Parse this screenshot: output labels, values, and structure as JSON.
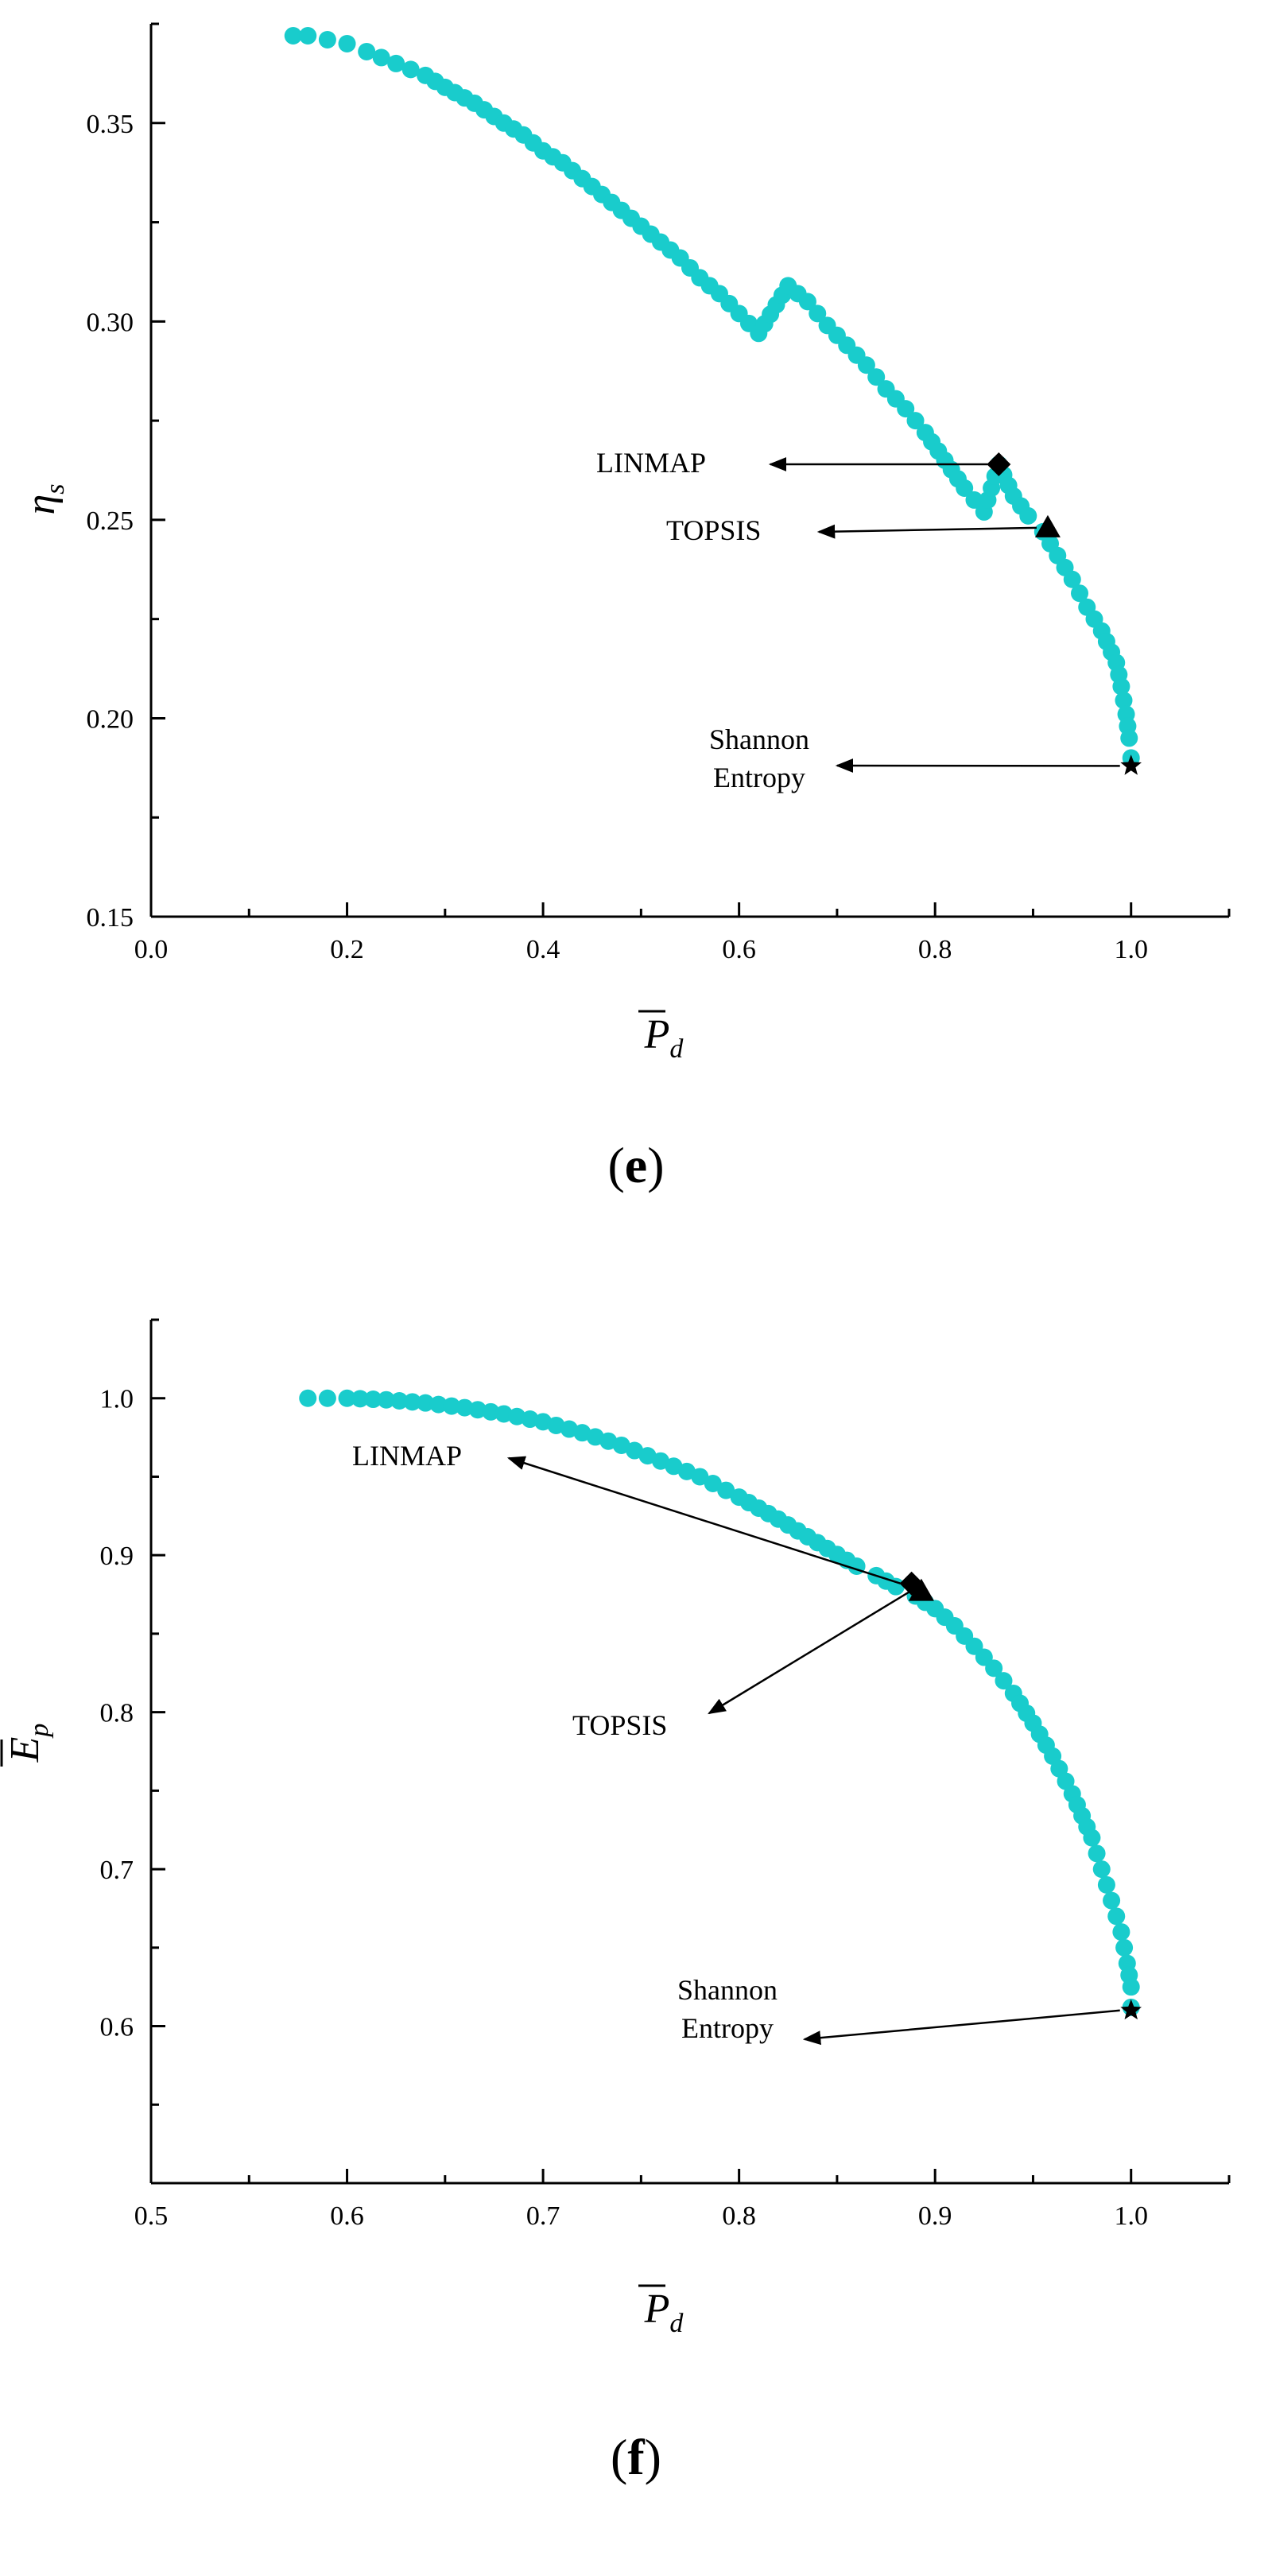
{
  "panels": [
    {
      "id": "e",
      "label": "e",
      "chart_data": {
        "type": "scatter",
        "xlabel": "P",
        "xlabel_sub": "d",
        "xlabel_overbar": true,
        "ylabel": "η",
        "ylabel_sub": "s",
        "ylabel_overbar": false,
        "xlim": [
          0.0,
          1.1
        ],
        "ylim": [
          0.15,
          0.375
        ],
        "xticks": [
          0.0,
          0.2,
          0.4,
          0.6,
          0.8,
          1.0
        ],
        "xtick_labels": [
          "0.0",
          "0.2",
          "0.4",
          "0.6",
          "0.8",
          "1.0"
        ],
        "yticks": [
          0.15,
          0.2,
          0.25,
          0.3,
          0.35
        ],
        "ytick_labels": [
          "0.15",
          "0.20",
          "0.25",
          "0.30",
          "0.35"
        ],
        "grid": false,
        "point_color": "#19cccc",
        "series": [
          {
            "x": [
              0.145,
              0.16,
              0.18,
              0.2,
              0.22,
              0.25,
              0.28,
              0.3,
              0.33,
              0.36,
              0.38,
              0.4,
              0.42,
              0.44,
              0.46,
              0.48,
              0.5,
              0.52,
              0.54,
              0.56,
              0.58,
              0.6,
              0.62,
              0.65,
              0.67,
              0.69,
              0.71,
              0.73,
              0.75,
              0.77,
              0.79,
              0.81,
              0.83,
              0.85,
              0.865,
              0.88,
              0.895,
              0.91,
              0.925,
              0.94,
              0.955,
              0.97,
              0.985,
              0.99,
              0.995,
              0.998,
              1.0
            ],
            "y": [
              0.372,
              0.372,
              0.371,
              0.37,
              0.368,
              0.365,
              0.362,
              0.359,
              0.355,
              0.35,
              0.347,
              0.343,
              0.34,
              0.336,
              0.332,
              0.328,
              0.324,
              0.32,
              0.316,
              0.311,
              0.307,
              0.302,
              0.297,
              0.309,
              0.305,
              0.299,
              0.294,
              0.289,
              0.283,
              0.278,
              0.272,
              0.265,
              0.258,
              0.252,
              0.264,
              0.256,
              0.251,
              0.247,
              0.241,
              0.235,
              0.228,
              0.222,
              0.214,
              0.208,
              0.201,
              0.195,
              0.19
            ]
          }
        ],
        "markers": [
          {
            "name": "LINMAP",
            "shape": "diamond",
            "x": 0.865,
            "y": 0.264
          },
          {
            "name": "TOPSIS",
            "shape": "triangle",
            "x": 0.915,
            "y": 0.248
          },
          {
            "name": "Shannon Entropy",
            "shape": "star",
            "x": 1.0,
            "y": 0.188
          }
        ],
        "annotations": [
          {
            "lines": [
              "LINMAP"
            ],
            "target": "LINMAP"
          },
          {
            "lines": [
              "TOPSIS"
            ],
            "target": "TOPSIS"
          },
          {
            "lines": [
              "Shannon",
              "Entropy"
            ],
            "target": "Shannon Entropy"
          }
        ]
      }
    },
    {
      "id": "f",
      "label": "f",
      "chart_data": {
        "type": "scatter",
        "xlabel": "P",
        "xlabel_sub": "d",
        "xlabel_overbar": true,
        "ylabel": "E",
        "ylabel_sub": "p",
        "ylabel_overbar": true,
        "xlim": [
          0.5,
          1.05
        ],
        "ylim": [
          0.5,
          1.05
        ],
        "xticks": [
          0.5,
          0.6,
          0.7,
          0.8,
          0.9,
          1.0
        ],
        "xtick_labels": [
          "0.5",
          "0.6",
          "0.7",
          "0.8",
          "0.9",
          "1.0"
        ],
        "yticks": [
          0.6,
          0.7,
          0.8,
          0.9,
          1.0
        ],
        "ytick_labels": [
          "0.6",
          "0.7",
          "0.8",
          "0.9",
          "1.0"
        ],
        "grid": false,
        "point_color": "#19cccc",
        "series": [
          {
            "x": [
              0.58,
              0.59,
              0.6,
              0.62,
              0.64,
              0.66,
              0.68,
              0.7,
              0.72,
              0.74,
              0.76,
              0.78,
              0.8,
              0.82,
              0.84,
              0.86,
              0.87,
              0.88,
              0.89,
              0.9,
              0.91,
              0.92,
              0.93,
              0.94,
              0.95,
              0.96,
              0.97,
              0.98,
              0.985,
              0.99,
              0.995,
              0.998,
              1.0,
              1.0
            ],
            "y": [
              1.0,
              1.0,
              1.0,
              0.999,
              0.997,
              0.994,
              0.99,
              0.985,
              0.978,
              0.97,
              0.96,
              0.95,
              0.937,
              0.923,
              0.908,
              0.893,
              0.887,
              0.88,
              0.874,
              0.866,
              0.855,
              0.842,
              0.828,
              0.812,
              0.793,
              0.772,
              0.748,
              0.72,
              0.7,
              0.68,
              0.66,
              0.64,
              0.625,
              0.612
            ]
          }
        ],
        "markers": [
          {
            "name": "LINMAP",
            "shape": "diamond",
            "x": 0.888,
            "y": 0.882
          },
          {
            "name": "TOPSIS",
            "shape": "triangle",
            "x": 0.893,
            "y": 0.877
          },
          {
            "name": "Shannon Entropy",
            "shape": "star",
            "x": 1.0,
            "y": 0.61
          }
        ],
        "annotations": [
          {
            "lines": [
              "LINMAP"
            ],
            "target": "LINMAP"
          },
          {
            "lines": [
              "TOPSIS"
            ],
            "target": "TOPSIS"
          },
          {
            "lines": [
              "Shannon",
              "Entropy"
            ],
            "target": "Shannon Entropy"
          }
        ]
      }
    }
  ]
}
